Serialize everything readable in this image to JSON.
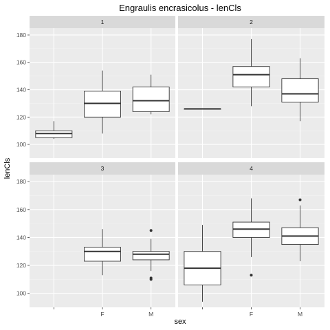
{
  "chart_data": {
    "type": "boxplot",
    "title": "Engraulis encrasicolus - lenCls",
    "xlabel": "sex",
    "ylabel": "lenCls",
    "categories": [
      "",
      "F",
      "M"
    ],
    "ylim": [
      90,
      185
    ],
    "yticks": [
      100,
      120,
      140,
      160,
      180
    ],
    "grid": true,
    "facet_layout": "2x2",
    "colors": {
      "panel_bg": "#ebebeb",
      "strip_bg": "#d9d9d9",
      "grid_major": "#ffffff",
      "box_fill": "#ffffff",
      "box_line": "#333333"
    },
    "panels": [
      {
        "label": "1",
        "boxes": [
          {
            "category": "",
            "min": 104,
            "q1": 105,
            "median": 108,
            "q3": 110,
            "max": 117,
            "outliers": []
          },
          {
            "category": "F",
            "min": 108,
            "q1": 120,
            "median": 130,
            "q3": 139,
            "max": 154,
            "outliers": []
          },
          {
            "category": "M",
            "min": 122,
            "q1": 124,
            "median": 132,
            "q3": 142,
            "max": 151,
            "outliers": []
          }
        ]
      },
      {
        "label": "2",
        "boxes": [
          {
            "category": "",
            "min": 126,
            "q1": 126,
            "median": 126,
            "q3": 126,
            "max": 126,
            "outliers": []
          },
          {
            "category": "F",
            "min": 128,
            "q1": 142,
            "median": 151,
            "q3": 157,
            "max": 177,
            "outliers": []
          },
          {
            "category": "M",
            "min": 117,
            "q1": 131,
            "median": 137,
            "q3": 148,
            "max": 163,
            "outliers": []
          }
        ]
      },
      {
        "label": "3",
        "boxes": [
          {
            "category": "F",
            "min": 113,
            "q1": 123,
            "median": 130,
            "q3": 133,
            "max": 146,
            "outliers": []
          },
          {
            "category": "M",
            "min": 116,
            "q1": 124,
            "median": 128,
            "q3": 130,
            "max": 139,
            "outliers": [
              145,
              111,
              110
            ]
          }
        ]
      },
      {
        "label": "4",
        "boxes": [
          {
            "category": "",
            "min": 94,
            "q1": 106,
            "median": 118,
            "q3": 130,
            "max": 149,
            "outliers": []
          },
          {
            "category": "F",
            "min": 126,
            "q1": 140,
            "median": 146,
            "q3": 151,
            "max": 168,
            "outliers": [
              113
            ]
          },
          {
            "category": "M",
            "min": 123,
            "q1": 135,
            "median": 141,
            "q3": 147,
            "max": 163,
            "outliers": [
              167
            ]
          }
        ]
      }
    ]
  }
}
